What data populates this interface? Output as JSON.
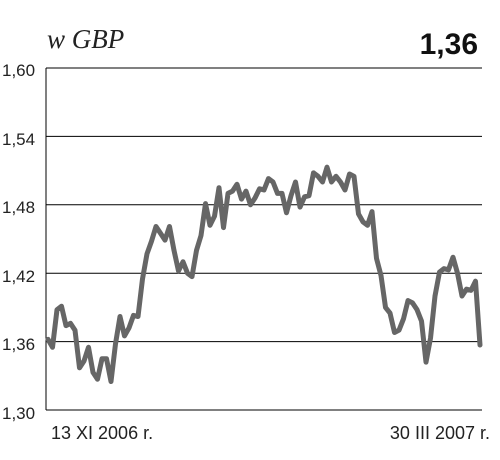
{
  "header": {
    "unit_label": "w GBP",
    "current_value": "1,36"
  },
  "chart_data": {
    "type": "line",
    "title": "",
    "xlabel": "",
    "ylabel": "",
    "ylim": [
      1.3,
      1.6
    ],
    "y_ticks": [
      1.6,
      1.54,
      1.48,
      1.42,
      1.36,
      1.3
    ],
    "y_tick_labels": [
      "1,60",
      "1,54",
      "1,48",
      "1,42",
      "1,36",
      "1,30"
    ],
    "x_range": [
      "2006-11-13",
      "2007-03-30"
    ],
    "x_start_label": "13 XI 2006 r.",
    "x_end_label": "30 III 2007 r.",
    "grid": "horizontal",
    "line_color": "#666666",
    "series": [
      {
        "values": [
          1.362,
          1.355,
          1.388,
          1.391,
          1.374,
          1.376,
          1.37,
          1.337,
          1.343,
          1.355,
          1.333,
          1.327,
          1.345,
          1.345,
          1.325,
          1.358,
          1.382,
          1.365,
          1.372,
          1.383,
          1.382,
          1.415,
          1.437,
          1.448,
          1.461,
          1.455,
          1.449,
          1.461,
          1.44,
          1.422,
          1.43,
          1.42,
          1.417,
          1.44,
          1.453,
          1.481,
          1.462,
          1.47,
          1.495,
          1.46,
          1.49,
          1.492,
          1.498,
          1.485,
          1.492,
          1.48,
          1.486,
          1.494,
          1.493,
          1.503,
          1.5,
          1.49,
          1.49,
          1.473,
          1.488,
          1.5,
          1.478,
          1.487,
          1.488,
          1.508,
          1.505,
          1.5,
          1.513,
          1.5,
          1.505,
          1.5,
          1.493,
          1.507,
          1.505,
          1.472,
          1.465,
          1.462,
          1.474,
          1.433,
          1.418,
          1.39,
          1.385,
          1.368,
          1.37,
          1.38,
          1.396,
          1.394,
          1.388,
          1.378,
          1.342,
          1.363,
          1.4,
          1.421,
          1.424,
          1.423,
          1.434,
          1.42,
          1.4,
          1.406,
          1.405,
          1.413,
          1.357
        ]
      }
    ]
  }
}
